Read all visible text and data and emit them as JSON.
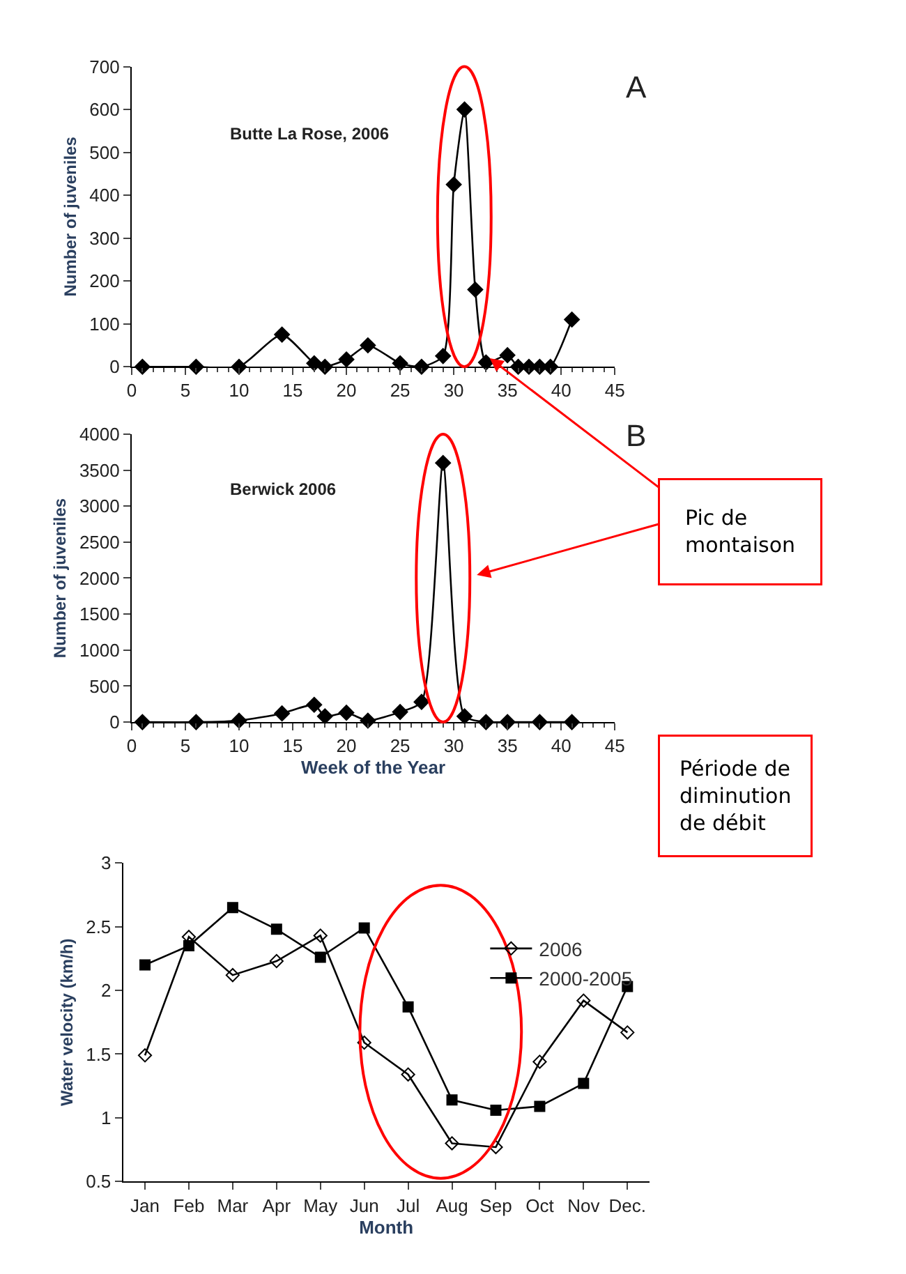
{
  "chart_data": [
    {
      "type": "line",
      "ylabel": "Number of juveniles",
      "x": [
        1,
        6,
        10,
        14,
        17,
        18,
        20,
        22,
        25,
        27,
        29,
        30,
        31,
        32,
        33,
        35,
        36,
        37,
        38,
        39,
        41
      ],
      "values": [
        0,
        0,
        0,
        75,
        8,
        0,
        17,
        50,
        8,
        0,
        25,
        425,
        600,
        180,
        10,
        27,
        0,
        0,
        0,
        0,
        110
      ],
      "color": "#000000",
      "marker": "diamond",
      "xlim": [
        0,
        45
      ],
      "xticks": [
        0,
        5,
        10,
        15,
        20,
        25,
        30,
        35,
        40,
        45
      ],
      "ylim": [
        0,
        700
      ],
      "yticks": [
        0,
        100,
        200,
        300,
        400,
        500,
        600,
        700
      ],
      "annotations": [
        "Butte La Rose, 2006",
        "A",
        "Pic de montaison"
      ]
    },
    {
      "type": "line",
      "xlabel": "Week of the Year",
      "ylabel": "Number of juveniles",
      "x": [
        1,
        6,
        10,
        14,
        17,
        18,
        20,
        22,
        25,
        27,
        29,
        31,
        33,
        35,
        38,
        41
      ],
      "values": [
        0,
        0,
        20,
        120,
        240,
        80,
        130,
        20,
        140,
        280,
        3600,
        80,
        0,
        0,
        0,
        0
      ],
      "color": "#000000",
      "marker": "diamond",
      "xlim": [
        0,
        45
      ],
      "xticks": [
        0,
        5,
        10,
        15,
        20,
        25,
        30,
        35,
        40,
        45
      ],
      "ylim": [
        0,
        4000
      ],
      "yticks": [
        0,
        500,
        1000,
        1500,
        2000,
        2500,
        3000,
        3500,
        4000
      ],
      "annotations": [
        "Berwick 2006",
        "B"
      ]
    },
    {
      "type": "line",
      "xlabel": "Month",
      "ylabel": "Water velocity (km/h)",
      "categories": [
        "Jan",
        "Feb",
        "Mar",
        "Apr",
        "May",
        "Jun",
        "Jul",
        "Aug",
        "Sep",
        "Oct",
        "Nov",
        "Dec."
      ],
      "ylim": [
        0.5,
        3
      ],
      "yticks": [
        0.5,
        1,
        1.5,
        2,
        2.5,
        3
      ],
      "legend": "top right",
      "series": [
        {
          "name": "2006",
          "color": "#000000",
          "marker": "diamond-open",
          "values": [
            1.49,
            2.42,
            2.12,
            2.23,
            2.43,
            1.59,
            1.34,
            0.8,
            0.77,
            1.44,
            1.92,
            1.67
          ]
        },
        {
          "name": "2000-2005",
          "color": "#000000",
          "marker": "square",
          "values": [
            2.2,
            2.35,
            2.65,
            2.48,
            2.26,
            2.49,
            1.87,
            1.14,
            1.06,
            1.09,
            1.27,
            2.03
          ]
        }
      ],
      "annotations": [
        "Période de diminution de débit"
      ]
    }
  ]
}
